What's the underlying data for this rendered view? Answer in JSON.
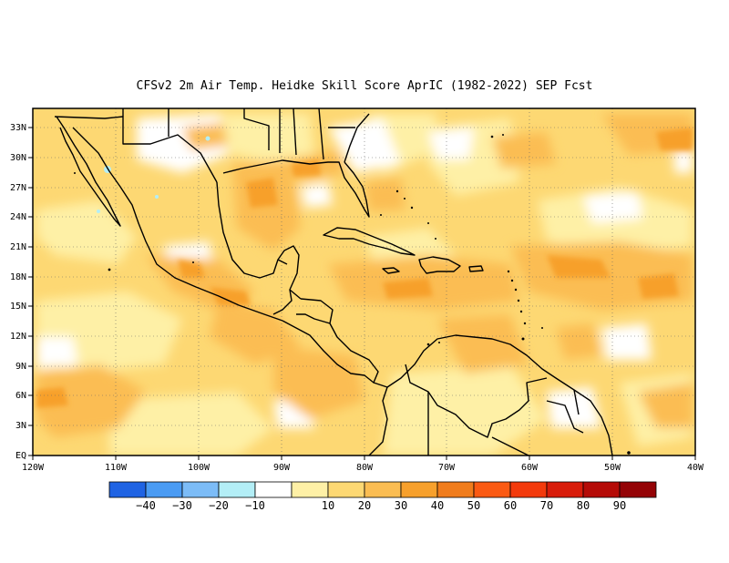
{
  "title": "CFSv2  2m Air Temp. Heidke Skill Score AprIC (1982-2022) SEP Fcst",
  "map": {
    "x_ticks": [
      "120W",
      "110W",
      "100W",
      "90W",
      "80W",
      "70W",
      "60W",
      "50W",
      "40W"
    ],
    "y_ticks": [
      "EQ",
      "3N",
      "6N",
      "9N",
      "12N",
      "15N",
      "18N",
      "21N",
      "24N",
      "27N",
      "30N",
      "33N"
    ],
    "lon_range": [
      -120,
      -40
    ],
    "lat_range": [
      0,
      35
    ],
    "gridlines": "dotted",
    "field_colors": {
      "white": "#ffffff",
      "pale_yellow": "#fef0a6",
      "light_orange": "#fdd873",
      "orange": "#fbbd52",
      "deep_orange": "#f7a02c",
      "light_blue": "#b3eef6"
    }
  },
  "colorbar": {
    "colors": [
      "#1f63e3",
      "#4a9bf3",
      "#7cbcf7",
      "#b3eef6",
      "#ffffff",
      "#fef0a6",
      "#fdd873",
      "#fbbd52",
      "#f7a02c",
      "#f07c1c",
      "#fb5a13",
      "#f33a0c",
      "#d81c0a",
      "#b50b07",
      "#940306"
    ],
    "labels": [
      "-40",
      "-30",
      "-20",
      "-10",
      "10",
      "20",
      "30",
      "40",
      "50",
      "60",
      "70",
      "80",
      "90"
    ]
  }
}
